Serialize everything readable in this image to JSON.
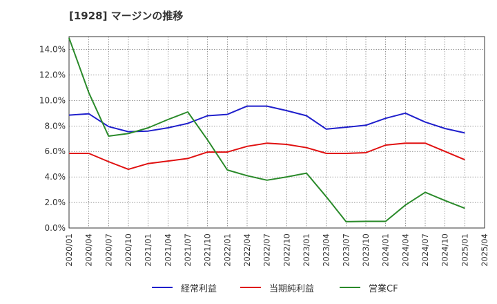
{
  "chart_data": {
    "type": "line",
    "title": "[1928]  マージンの推移",
    "xlabel": "",
    "ylabel": "",
    "ylim": [
      0,
      15
    ],
    "y_ticks": [
      0,
      2,
      4,
      6,
      8,
      10,
      12,
      14
    ],
    "y_tick_labels": [
      "0.0%",
      "2.0%",
      "4.0%",
      "6.0%",
      "8.0%",
      "10.0%",
      "12.0%",
      "14.0%"
    ],
    "x_tick_labels": [
      "2020/01",
      "2020/04",
      "2020/07",
      "2020/10",
      "2021/01",
      "2021/04",
      "2021/07",
      "2021/10",
      "2022/01",
      "2022/04",
      "2022/07",
      "2022/10",
      "2023/01",
      "2023/04",
      "2023/07",
      "2023/10",
      "2024/01",
      "2024/04",
      "2024/07",
      "2024/10",
      "2025/01",
      "2025/04"
    ],
    "grid": true,
    "legend_position": "bottom",
    "series": [
      {
        "name": "経常利益",
        "color": "#1f1fcc",
        "values": [
          8.85,
          8.95,
          7.95,
          7.55,
          7.6,
          7.85,
          8.2,
          8.8,
          8.9,
          9.55,
          9.55,
          9.2,
          8.8,
          7.75,
          7.9,
          8.05,
          8.6,
          9.0,
          8.3,
          7.8,
          7.45
        ]
      },
      {
        "name": "当期純利益",
        "color": "#e01010",
        "values": [
          5.85,
          5.85,
          5.2,
          4.6,
          5.05,
          5.25,
          5.45,
          5.95,
          5.95,
          6.4,
          6.65,
          6.55,
          6.3,
          5.85,
          5.85,
          5.9,
          6.5,
          6.65,
          6.65,
          6.0,
          5.35
        ]
      },
      {
        "name": "営業CF",
        "color": "#2a8a2a",
        "values": [
          14.9,
          10.6,
          7.2,
          7.4,
          7.85,
          8.5,
          9.1,
          6.9,
          4.55,
          4.1,
          3.75,
          4.0,
          4.3,
          2.45,
          0.5,
          0.52,
          0.52,
          1.8,
          2.8,
          2.15,
          1.55
        ]
      }
    ]
  }
}
